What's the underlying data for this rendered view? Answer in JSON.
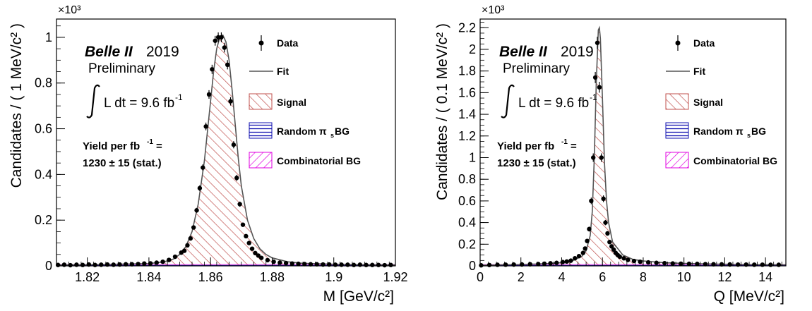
{
  "chart_data": [
    {
      "type": "line",
      "xlabel": "M [GeV/c²]",
      "ylabel": "Candidates / ( 1 MeV/c² )",
      "y_exponent": "×10³",
      "xlim": [
        1.81,
        1.92
      ],
      "ylim": [
        0,
        1.08
      ],
      "xticks": [
        "1.82",
        "1.84",
        "1.86",
        "1.88",
        "1.9",
        "1.92"
      ],
      "xtick_values": [
        1.82,
        1.84,
        1.86,
        1.88,
        1.9,
        1.92
      ],
      "yticks": [
        "0",
        "0.2",
        "0.4",
        "0.6",
        "0.8",
        "1"
      ],
      "ytick_values": [
        0,
        0.2,
        0.4,
        0.6,
        0.8,
        1.0
      ],
      "experiment_label": "Belle II",
      "year": "2019",
      "status": "Preliminary",
      "luminosity": "L dt = 9.6 fb",
      "luminosity_sup": "-1",
      "yield_line1": "Yield per fb",
      "yield_sup": "-1",
      "yield_eq": " =",
      "yield_line2": "1230 ± 15 (stat.)",
      "legend": [
        "Data",
        "Fit",
        "Signal",
        "Random π",
        "s",
        " BG",
        "Combinatorial BG"
      ],
      "series": [
        {
          "name": "Data",
          "x": [
            1.8105,
            1.8125,
            1.8145,
            1.8165,
            1.8185,
            1.8205,
            1.8225,
            1.8245,
            1.8265,
            1.8285,
            1.8305,
            1.8325,
            1.8345,
            1.8365,
            1.8385,
            1.8405,
            1.8425,
            1.8445,
            1.8465,
            1.8485,
            1.8505,
            1.8515,
            1.8525,
            1.8535,
            1.8545,
            1.8555,
            1.8565,
            1.8575,
            1.8585,
            1.8595,
            1.8605,
            1.8615,
            1.8625,
            1.8635,
            1.8645,
            1.8655,
            1.8665,
            1.8675,
            1.8685,
            1.8695,
            1.8705,
            1.8715,
            1.8725,
            1.8735,
            1.8745,
            1.8755,
            1.8765,
            1.8785,
            1.8805,
            1.8825,
            1.8845,
            1.8865,
            1.8885,
            1.8905,
            1.8925,
            1.8945,
            1.8965,
            1.8985,
            1.9005,
            1.9025,
            1.9045,
            1.9065,
            1.9085,
            1.9105,
            1.9125,
            1.9145,
            1.9165,
            1.9185
          ],
          "y": [
            0.004,
            0.005,
            0.003,
            0.005,
            0.004,
            0.006,
            0.004,
            0.005,
            0.006,
            0.005,
            0.006,
            0.007,
            0.007,
            0.008,
            0.01,
            0.011,
            0.014,
            0.018,
            0.026,
            0.04,
            0.058,
            0.066,
            0.09,
            0.12,
            0.168,
            0.243,
            0.34,
            0.43,
            0.61,
            0.75,
            0.86,
            0.985,
            1.0,
            1.0,
            0.955,
            0.88,
            0.72,
            0.53,
            0.385,
            0.27,
            0.18,
            0.13,
            0.1,
            0.075,
            0.056,
            0.045,
            0.035,
            0.025,
            0.018,
            0.014,
            0.012,
            0.01,
            0.009,
            0.008,
            0.007,
            0.007,
            0.006,
            0.006,
            0.005,
            0.005,
            0.005,
            0.004,
            0.005,
            0.004,
            0.004,
            0.004,
            0.003,
            0.004
          ]
        },
        {
          "name": "Fit",
          "x": [
            1.81,
            1.82,
            1.83,
            1.84,
            1.845,
            1.848,
            1.85,
            1.852,
            1.854,
            1.856,
            1.858,
            1.86,
            1.861,
            1.862,
            1.863,
            1.864,
            1.865,
            1.866,
            1.867,
            1.868,
            1.869,
            1.87,
            1.872,
            1.874,
            1.876,
            1.878,
            1.88,
            1.885,
            1.89,
            1.9,
            1.91,
            1.92
          ],
          "y": [
            0.004,
            0.005,
            0.007,
            0.01,
            0.018,
            0.03,
            0.05,
            0.085,
            0.15,
            0.27,
            0.46,
            0.72,
            0.85,
            0.95,
            1.0,
            1.01,
            0.98,
            0.9,
            0.77,
            0.62,
            0.47,
            0.35,
            0.2,
            0.12,
            0.075,
            0.05,
            0.035,
            0.018,
            0.011,
            0.007,
            0.005,
            0.004
          ]
        }
      ]
    },
    {
      "type": "line",
      "xlabel": "Q [MeV/c²]",
      "ylabel": "Candidates / ( 0.1 MeV/c² )",
      "y_exponent": "×10³",
      "xlim": [
        0,
        15
      ],
      "ylim": [
        0,
        2.28
      ],
      "xticks": [
        "0",
        "2",
        "4",
        "6",
        "8",
        "10",
        "12",
        "14"
      ],
      "xtick_values": [
        0,
        2,
        4,
        6,
        8,
        10,
        12,
        14
      ],
      "yticks": [
        "0",
        "0.2",
        "0.4",
        "0.6",
        "0.8",
        "1",
        "1.2",
        "1.4",
        "1.6",
        "1.8",
        "2",
        "2.2"
      ],
      "ytick_values": [
        0,
        0.2,
        0.4,
        0.6,
        0.8,
        1.0,
        1.2,
        1.4,
        1.6,
        1.8,
        2.0,
        2.2
      ],
      "experiment_label": "Belle II",
      "year": "2019",
      "status": "Preliminary",
      "luminosity": "L dt = 9.6 fb",
      "luminosity_sup": "-1",
      "yield_line1": "Yield per fb",
      "yield_sup": "-1",
      "yield_eq": " =",
      "yield_line2": "1230 ± 15 (stat.)",
      "legend": [
        "Data",
        "Fit",
        "Signal",
        "Random π",
        "s",
        " BG",
        "Combinatorial BG"
      ],
      "series": [
        {
          "name": "Data",
          "x": [
            0.05,
            0.45,
            0.85,
            1.25,
            1.65,
            2.05,
            2.45,
            2.85,
            3.15,
            3.45,
            3.75,
            4.05,
            4.25,
            4.45,
            4.65,
            4.85,
            5.05,
            5.15,
            5.25,
            5.35,
            5.45,
            5.55,
            5.65,
            5.75,
            5.85,
            5.95,
            6.05,
            6.15,
            6.25,
            6.35,
            6.45,
            6.55,
            6.65,
            6.75,
            6.85,
            7.05,
            7.25,
            7.55,
            7.85,
            8.25,
            8.65,
            9.05,
            9.45,
            9.85,
            10.25,
            10.65,
            11.05,
            11.45,
            11.85,
            12.25,
            12.65,
            13.05,
            13.45,
            13.85,
            14.25,
            14.65
          ],
          "y": [
            0.005,
            0.008,
            0.01,
            0.011,
            0.012,
            0.013,
            0.015,
            0.017,
            0.02,
            0.024,
            0.028,
            0.035,
            0.04,
            0.048,
            0.07,
            0.09,
            0.12,
            0.16,
            0.23,
            0.34,
            0.6,
            1.0,
            1.74,
            2.06,
            1.65,
            1.0,
            0.62,
            0.4,
            0.3,
            0.22,
            0.18,
            0.15,
            0.12,
            0.1,
            0.085,
            0.07,
            0.055,
            0.045,
            0.038,
            0.032,
            0.028,
            0.025,
            0.022,
            0.02,
            0.019,
            0.018,
            0.016,
            0.015,
            0.014,
            0.013,
            0.012,
            0.012,
            0.011,
            0.011,
            0.01,
            0.01
          ]
        },
        {
          "name": "Fit",
          "x": [
            0,
            1,
            2,
            3,
            3.5,
            4,
            4.5,
            5,
            5.2,
            5.4,
            5.5,
            5.6,
            5.7,
            5.8,
            5.85,
            5.9,
            6.0,
            6.1,
            6.2,
            6.3,
            6.5,
            7,
            7.5,
            8,
            9,
            10,
            11,
            12,
            13,
            14,
            15
          ],
          "y": [
            0.005,
            0.01,
            0.013,
            0.018,
            0.022,
            0.03,
            0.045,
            0.09,
            0.14,
            0.28,
            0.5,
            1.0,
            1.7,
            2.18,
            2.2,
            2.1,
            1.55,
            0.95,
            0.6,
            0.4,
            0.22,
            0.1,
            0.06,
            0.045,
            0.03,
            0.022,
            0.018,
            0.015,
            0.013,
            0.011,
            0.01
          ]
        }
      ]
    }
  ],
  "colors": {
    "signal": "#c0504d",
    "random_bg": "#1010b0",
    "combinatorial_bg": "#e000e0",
    "fit": "#555555",
    "data": "#000000"
  }
}
